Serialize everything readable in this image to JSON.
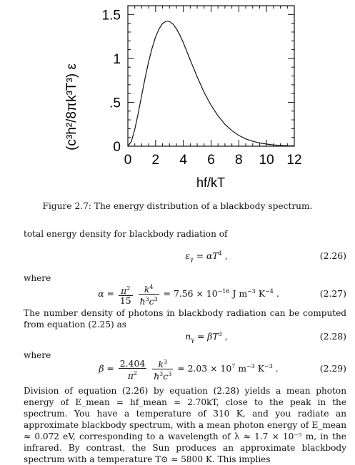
{
  "chart_data": {
    "type": "line",
    "title": "",
    "xlabel": "hf/kT",
    "ylabel": "(c³h²/8πk³T³) ε",
    "xlim": [
      0,
      12
    ],
    "ylim": [
      0,
      1.6
    ],
    "x_ticks": [
      "0",
      "2",
      "4",
      "6",
      "8",
      "10",
      "12"
    ],
    "y_ticks": [
      ".5",
      "1",
      "1.5"
    ],
    "y_tick_values": [
      0.5,
      1,
      1.5
    ],
    "y_zero_label": "0",
    "grid": false,
    "series": [
      {
        "x": [
          0,
          0.25,
          0.5,
          0.75,
          1,
          1.25,
          1.5,
          1.75,
          2,
          2.25,
          2.5,
          2.75,
          2.82,
          3,
          3.25,
          3.5,
          3.75,
          4,
          4.5,
          5,
          5.5,
          6,
          6.5,
          7,
          7.5,
          8,
          8.5,
          9,
          9.5,
          10,
          10.5,
          11,
          11.5,
          12
        ],
        "y": [
          0,
          0.055,
          0.192,
          0.378,
          0.582,
          0.781,
          0.963,
          1.118,
          1.244,
          1.336,
          1.396,
          1.423,
          1.424,
          1.42,
          1.391,
          1.338,
          1.265,
          1.178,
          0.98,
          0.789,
          0.612,
          0.466,
          0.346,
          0.25,
          0.177,
          0.123,
          0.084,
          0.056,
          0.037,
          0.024,
          0.015,
          0.01,
          0.006,
          0.004
        ]
      }
    ]
  },
  "caption": "Figure 2.7: The energy distribution of a blackbody spectrum.",
  "text": {
    "p1": "total energy density for blackbody radiation of",
    "where1": "where",
    "p2": "The number density of photons in blackbody radiation can be computed from equation (2.25) as",
    "where2": "where",
    "p3_a": "Division of equation (2.26) by equation (2.28) yields a mean photon energy of",
    "p3_b": ", close to the peak in the spectrum. You have a temperature of 310 K, and you radiate an approximate blackbody spectrum, with a mean photon energy of",
    "p3_c": ", corresponding to a wavelength of",
    "p3_d": ", in the infrared. By contrast, the Sun produces an approximate blackbody spectrum with a temperature",
    "p3_e": ". This implies"
  },
  "equations": {
    "eq226_num": "(2.26)",
    "eq227_num": "(2.27)",
    "eq228_num": "(2.28)",
    "eq229_num": "(2.29)",
    "eq227_value": "= 7.56 × 10",
    "eq227_exp": "−16",
    "eq227_units": "J m",
    "eq229_coef": "2.404",
    "eq229_value": "= 2.03 × 10",
    "eq229_exp": "7",
    "mean_energy": "E_mean = hf_mean ≈ 2.70kT",
    "photon_energy": "E_mean ≈ 0.072 eV",
    "wavelength": "λ ≈ 1.7 × 10⁻⁵ m",
    "sun_temp": "T⊙ ≈ 5800 K"
  }
}
